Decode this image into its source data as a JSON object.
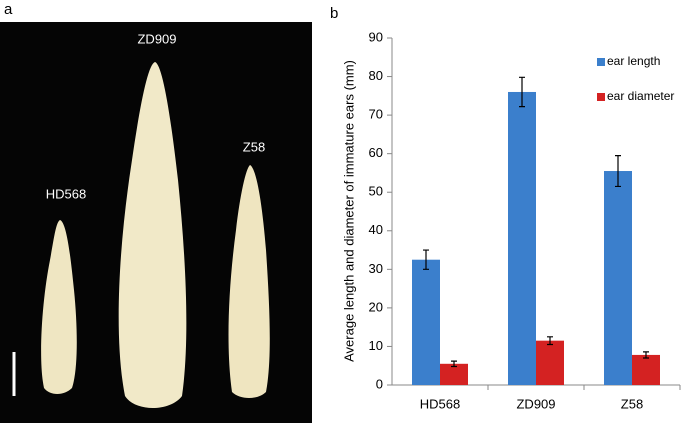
{
  "panel_a": {
    "label": "a",
    "varieties": [
      "HD568",
      "ZD909",
      "Z58"
    ]
  },
  "chart_data": {
    "type": "bar",
    "panel_label": "b",
    "y_label": "Average length and diameter of immature ears (mm)",
    "categories": [
      "HD568",
      "ZD909",
      "Z58"
    ],
    "series": [
      {
        "name": "ear length",
        "color": "#3b7fcc",
        "values": [
          32.5,
          76,
          55.5
        ],
        "errors": [
          2.5,
          3.8,
          4
        ]
      },
      {
        "name": "ear diameter",
        "color": "#d42222",
        "values": [
          5.5,
          11.5,
          7.8
        ],
        "errors": [
          0.7,
          1,
          0.8
        ]
      }
    ],
    "ylim": [
      0,
      90
    ],
    "yticks": [
      0,
      10,
      20,
      30,
      40,
      50,
      60,
      70,
      80,
      90
    ],
    "grid": false,
    "legend": "top-right"
  }
}
